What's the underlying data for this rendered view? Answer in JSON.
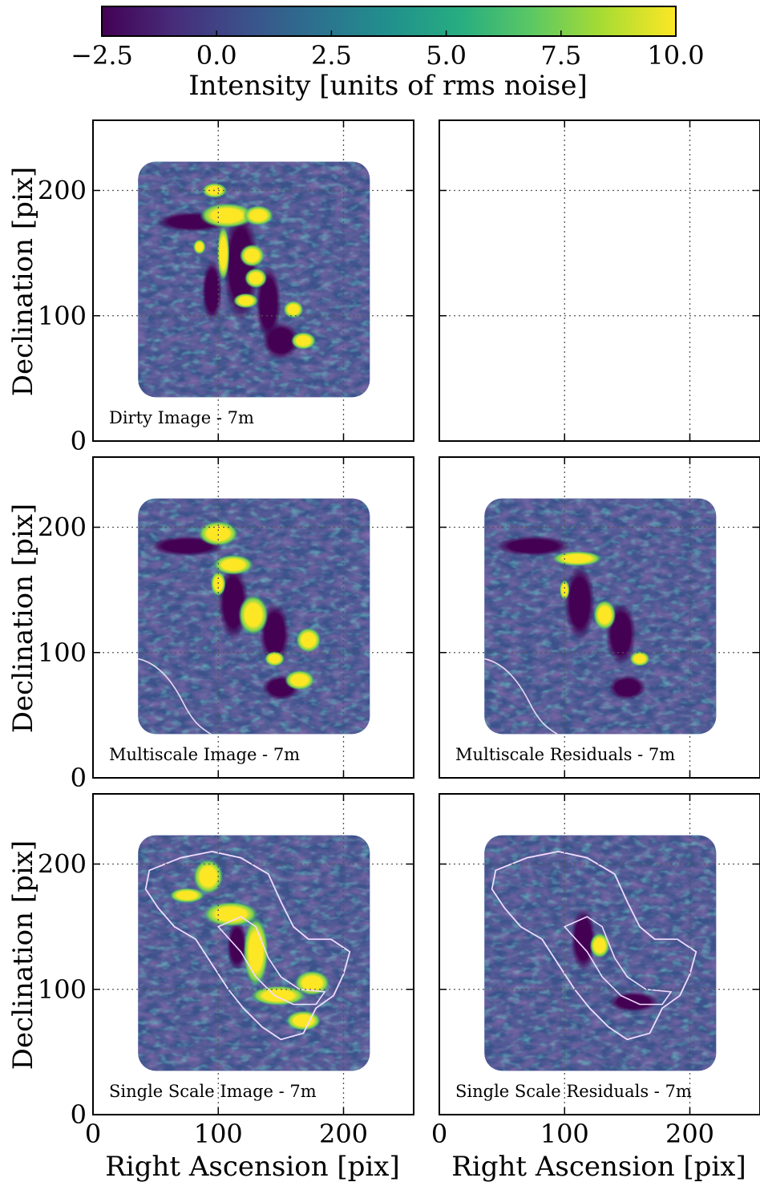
{
  "chart_data": {
    "type": "heatmap",
    "colormap": "viridis",
    "colorbar": {
      "label": "Intensity [units of rms noise]",
      "range": [
        -2.5,
        10.0
      ],
      "ticks": [
        -2.5,
        0.0,
        2.5,
        5.0,
        7.5,
        10.0
      ],
      "tick_labels": [
        "−2.5",
        "0.0",
        "2.5",
        "5.0",
        "7.5",
        "10.0"
      ],
      "colors": [
        "#440154",
        "#472c7a",
        "#3b518b",
        "#2c718e",
        "#21908d",
        "#27ad81",
        "#5cc863",
        "#aadc32",
        "#fde725"
      ]
    },
    "xlabel": "Right Ascension [pix]",
    "ylabel": "Declination [pix]",
    "xlim": [
      0,
      256
    ],
    "ylim": [
      0,
      256
    ],
    "x_ticks": [
      0,
      100,
      200
    ],
    "y_ticks": [
      0,
      100,
      200
    ],
    "x_tick_labels": [
      "0",
      "100",
      "200"
    ],
    "y_tick_labels": [
      "0",
      "100",
      "200"
    ],
    "grid": true,
    "panels": [
      {
        "label": "Dirty Image - 7m",
        "has_image": true,
        "contours": "none",
        "bright_features": [
          {
            "x": 107,
            "y": 180,
            "rx": 22,
            "ry": 10
          },
          {
            "x": 97,
            "y": 200,
            "rx": 10,
            "ry": 6
          },
          {
            "x": 132,
            "y": 180,
            "rx": 12,
            "ry": 8
          },
          {
            "x": 104,
            "y": 150,
            "rx": 5,
            "ry": 22
          },
          {
            "x": 130,
            "y": 130,
            "rx": 9,
            "ry": 8
          },
          {
            "x": 127,
            "y": 148,
            "rx": 10,
            "ry": 9
          },
          {
            "x": 122,
            "y": 112,
            "rx": 10,
            "ry": 6
          },
          {
            "x": 160,
            "y": 105,
            "rx": 8,
            "ry": 7
          },
          {
            "x": 168,
            "y": 80,
            "rx": 10,
            "ry": 7
          },
          {
            "x": 85,
            "y": 155,
            "rx": 5,
            "ry": 6
          }
        ],
        "dark_features": [
          {
            "x": 118,
            "y": 140,
            "rx": 14,
            "ry": 45
          },
          {
            "x": 140,
            "y": 110,
            "rx": 10,
            "ry": 30
          },
          {
            "x": 80,
            "y": 175,
            "rx": 30,
            "ry": 8
          },
          {
            "x": 150,
            "y": 80,
            "rx": 15,
            "ry": 15
          },
          {
            "x": 95,
            "y": 120,
            "rx": 8,
            "ry": 25
          }
        ]
      },
      {
        "label": "",
        "has_image": false,
        "contours": "none",
        "bright_features": [],
        "dark_features": []
      },
      {
        "label": "Multiscale Image - 7m",
        "has_image": true,
        "contours": "edge",
        "bright_features": [
          {
            "x": 100,
            "y": 195,
            "rx": 16,
            "ry": 10
          },
          {
            "x": 112,
            "y": 170,
            "rx": 16,
            "ry": 8
          },
          {
            "x": 100,
            "y": 155,
            "rx": 6,
            "ry": 10
          },
          {
            "x": 128,
            "y": 130,
            "rx": 12,
            "ry": 16
          },
          {
            "x": 145,
            "y": 95,
            "rx": 8,
            "ry": 6
          },
          {
            "x": 172,
            "y": 110,
            "rx": 10,
            "ry": 10
          },
          {
            "x": 165,
            "y": 78,
            "rx": 12,
            "ry": 8
          }
        ],
        "dark_features": [
          {
            "x": 112,
            "y": 140,
            "rx": 12,
            "ry": 30
          },
          {
            "x": 145,
            "y": 115,
            "rx": 12,
            "ry": 25
          },
          {
            "x": 75,
            "y": 185,
            "rx": 30,
            "ry": 8
          },
          {
            "x": 150,
            "y": 72,
            "rx": 15,
            "ry": 10
          }
        ]
      },
      {
        "label": "Multiscale Residuals - 7m",
        "has_image": true,
        "contours": "edge",
        "bright_features": [
          {
            "x": 110,
            "y": 175,
            "rx": 20,
            "ry": 6
          },
          {
            "x": 132,
            "y": 130,
            "rx": 9,
            "ry": 12
          },
          {
            "x": 100,
            "y": 150,
            "rx": 4,
            "ry": 8
          },
          {
            "x": 160,
            "y": 95,
            "rx": 8,
            "ry": 6
          }
        ],
        "dark_features": [
          {
            "x": 112,
            "y": 140,
            "rx": 12,
            "ry": 30
          },
          {
            "x": 145,
            "y": 115,
            "rx": 12,
            "ry": 25
          },
          {
            "x": 75,
            "y": 185,
            "rx": 30,
            "ry": 8
          },
          {
            "x": 150,
            "y": 72,
            "rx": 15,
            "ry": 10
          }
        ]
      },
      {
        "label": "Single Scale Image - 7m",
        "has_image": true,
        "contours": "mask",
        "bright_features": [
          {
            "x": 92,
            "y": 190,
            "rx": 12,
            "ry": 14
          },
          {
            "x": 110,
            "y": 160,
            "rx": 22,
            "ry": 10
          },
          {
            "x": 130,
            "y": 130,
            "rx": 10,
            "ry": 28
          },
          {
            "x": 148,
            "y": 95,
            "rx": 22,
            "ry": 8
          },
          {
            "x": 175,
            "y": 105,
            "rx": 14,
            "ry": 10
          },
          {
            "x": 168,
            "y": 75,
            "rx": 14,
            "ry": 8
          },
          {
            "x": 75,
            "y": 175,
            "rx": 14,
            "ry": 6
          }
        ],
        "dark_features": [
          {
            "x": 115,
            "y": 135,
            "rx": 8,
            "ry": 20
          }
        ]
      },
      {
        "label": "Single Scale Residuals - 7m",
        "has_image": true,
        "contours": "mask",
        "bright_features": [
          {
            "x": 128,
            "y": 135,
            "rx": 8,
            "ry": 10
          }
        ],
        "dark_features": [
          {
            "x": 115,
            "y": 140,
            "rx": 10,
            "ry": 25
          },
          {
            "x": 155,
            "y": 90,
            "rx": 20,
            "ry": 8
          }
        ]
      }
    ]
  }
}
